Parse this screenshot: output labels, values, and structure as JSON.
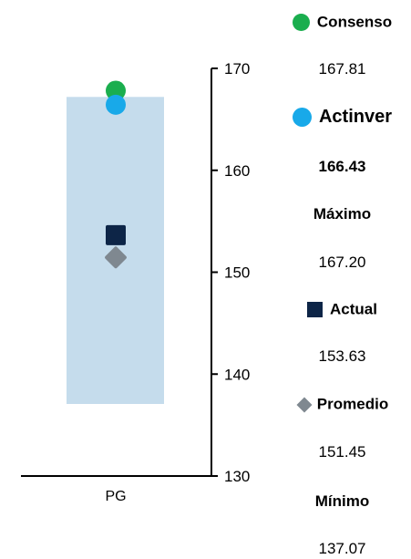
{
  "chart_data": {
    "type": "range-marker",
    "categories": [
      "PG"
    ],
    "range": {
      "low": 137.07,
      "high": 167.2,
      "color": "#C5DCEC"
    },
    "markers": [
      {
        "key": "consenso",
        "name": "Consenso",
        "value": 167.81,
        "value_label": "167.81",
        "shape": "circle",
        "color": "#1AAE4E"
      },
      {
        "key": "actinver",
        "name": "Actinver",
        "value": 166.43,
        "value_label": "166.43",
        "shape": "circle",
        "color": "#18A9E9"
      },
      {
        "key": "actual",
        "name": "Actual",
        "value": 153.63,
        "value_label": "153.63",
        "shape": "square",
        "color": "#0D2547"
      },
      {
        "key": "promedio",
        "name": "Promedio",
        "value": 151.45,
        "value_label": "151.45",
        "shape": "diamond",
        "color": "#7F8890"
      }
    ],
    "y_axis": {
      "min": 130,
      "max": 170,
      "ticks": [
        130,
        140,
        150,
        160,
        170
      ],
      "position": "right"
    },
    "stats": [
      {
        "name": "Máximo",
        "value": "167.20"
      },
      {
        "name": "Mínimo",
        "value": "137.07"
      }
    ],
    "legend_position": "right",
    "grid": false
  }
}
